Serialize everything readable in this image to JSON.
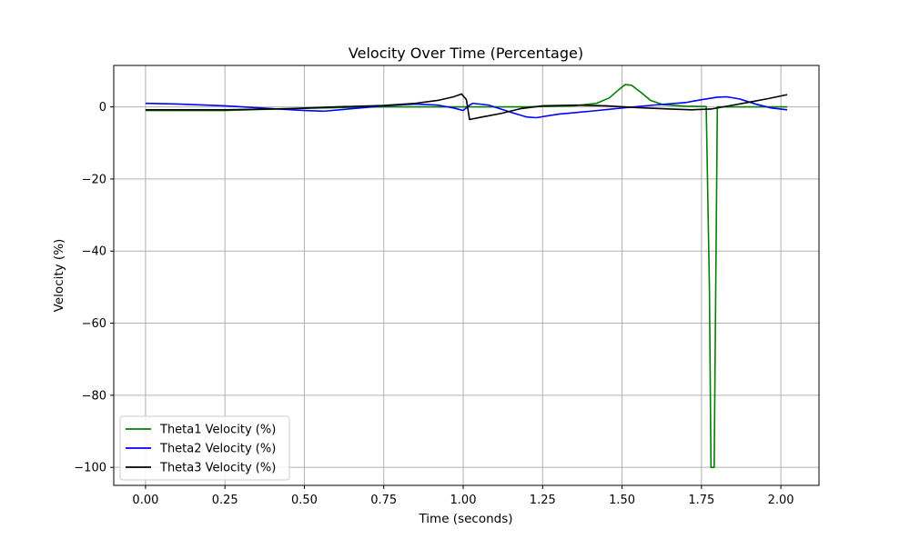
{
  "chart_data": {
    "type": "line",
    "title": "Velocity Over Time (Percentage)",
    "xlabel": "Time (seconds)",
    "ylabel": "Velocity (%)",
    "xlim": [
      -0.1,
      2.12
    ],
    "ylim": [
      -105,
      11.5
    ],
    "x_ticks": [
      0.0,
      0.25,
      0.5,
      0.75,
      1.0,
      1.25,
      1.5,
      1.75,
      2.0
    ],
    "x_tick_labels": [
      "0.00",
      "0.25",
      "0.50",
      "0.75",
      "1.00",
      "1.25",
      "1.50",
      "1.75",
      "2.00"
    ],
    "y_ticks": [
      0,
      -20,
      -40,
      -60,
      -80,
      -100
    ],
    "y_tick_labels": [
      "0",
      "−20",
      "−40",
      "−60",
      "−80",
      "−100"
    ],
    "grid": true,
    "legend_position": "bottom-left",
    "series": [
      {
        "name": "Theta1 Velocity (%)",
        "color": "#008000",
        "points": [
          [
            0.0,
            -1.0
          ],
          [
            0.25,
            -1.0
          ],
          [
            0.45,
            -0.5
          ],
          [
            0.6,
            -0.2
          ],
          [
            0.75,
            0.0
          ],
          [
            1.0,
            0.0
          ],
          [
            1.2,
            0.0
          ],
          [
            1.35,
            0.3
          ],
          [
            1.42,
            1.0
          ],
          [
            1.46,
            2.5
          ],
          [
            1.49,
            4.8
          ],
          [
            1.51,
            6.2
          ],
          [
            1.53,
            6.0
          ],
          [
            1.56,
            4.0
          ],
          [
            1.59,
            1.8
          ],
          [
            1.63,
            0.6
          ],
          [
            1.7,
            0.2
          ],
          [
            1.765,
            0.1
          ],
          [
            1.775,
            -50.0
          ],
          [
            1.78,
            -100.0
          ],
          [
            1.79,
            -100.0
          ],
          [
            1.8,
            0.0
          ],
          [
            1.85,
            0.0
          ],
          [
            2.02,
            0.0
          ]
        ]
      },
      {
        "name": "Theta2 Velocity (%)",
        "color": "#0000ff",
        "points": [
          [
            0.0,
            1.0
          ],
          [
            0.1,
            0.8
          ],
          [
            0.25,
            0.3
          ],
          [
            0.4,
            -0.5
          ],
          [
            0.5,
            -1.0
          ],
          [
            0.56,
            -1.2
          ],
          [
            0.65,
            -0.5
          ],
          [
            0.75,
            0.3
          ],
          [
            0.85,
            0.8
          ],
          [
            0.92,
            0.5
          ],
          [
            0.97,
            -0.3
          ],
          [
            1.0,
            -1.0
          ],
          [
            1.02,
            0.5
          ],
          [
            1.03,
            1.0
          ],
          [
            1.08,
            0.5
          ],
          [
            1.15,
            -1.5
          ],
          [
            1.2,
            -2.8
          ],
          [
            1.23,
            -3.0
          ],
          [
            1.3,
            -2.0
          ],
          [
            1.4,
            -1.2
          ],
          [
            1.5,
            -0.3
          ],
          [
            1.6,
            0.5
          ],
          [
            1.7,
            1.2
          ],
          [
            1.75,
            2.0
          ],
          [
            1.8,
            2.7
          ],
          [
            1.83,
            2.8
          ],
          [
            1.87,
            2.2
          ],
          [
            1.92,
            0.8
          ],
          [
            1.97,
            -0.3
          ],
          [
            2.02,
            -0.8
          ]
        ]
      },
      {
        "name": "Theta3 Velocity (%)",
        "color": "#000000",
        "points": [
          [
            0.0,
            -0.8
          ],
          [
            0.25,
            -0.8
          ],
          [
            0.45,
            -0.5
          ],
          [
            0.6,
            0.0
          ],
          [
            0.75,
            0.4
          ],
          [
            0.85,
            1.0
          ],
          [
            0.92,
            1.8
          ],
          [
            0.97,
            2.8
          ],
          [
            0.995,
            3.6
          ],
          [
            1.01,
            2.0
          ],
          [
            1.02,
            -3.5
          ],
          [
            1.06,
            -2.8
          ],
          [
            1.12,
            -1.8
          ],
          [
            1.18,
            -0.5
          ],
          [
            1.25,
            0.3
          ],
          [
            1.35,
            0.5
          ],
          [
            1.45,
            0.3
          ],
          [
            1.55,
            -0.2
          ],
          [
            1.65,
            -0.6
          ],
          [
            1.72,
            -0.8
          ],
          [
            1.78,
            -0.6
          ],
          [
            1.85,
            0.5
          ],
          [
            1.9,
            1.3
          ],
          [
            1.96,
            2.3
          ],
          [
            2.02,
            3.4
          ]
        ]
      }
    ]
  }
}
